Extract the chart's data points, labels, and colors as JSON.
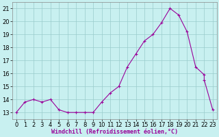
{
  "data_points": [
    [
      0,
      13.0
    ],
    [
      1,
      13.8
    ],
    [
      2,
      14.0
    ],
    [
      3,
      13.8
    ],
    [
      4,
      14.0
    ],
    [
      5,
      13.2
    ],
    [
      6,
      13.0
    ],
    [
      7,
      13.0
    ],
    [
      8,
      13.0
    ],
    [
      9,
      13.0
    ],
    [
      10,
      13.8
    ],
    [
      11,
      14.5
    ],
    [
      12,
      15.0
    ],
    [
      13,
      16.5
    ],
    [
      14,
      17.5
    ],
    [
      15,
      18.5
    ],
    [
      16,
      19.0
    ],
    [
      17,
      19.9
    ],
    [
      18,
      21.0
    ],
    [
      19,
      20.5
    ],
    [
      20,
      19.2
    ],
    [
      21,
      16.5
    ],
    [
      22,
      15.9
    ],
    [
      22,
      15.5
    ],
    [
      23,
      13.2
    ]
  ],
  "line_color": "#990099",
  "marker_color": "#990099",
  "bg_color": "#c8f0f0",
  "grid_color": "#99cccc",
  "xlabel": "Windchill (Refroidissement éolien,°C)",
  "ylim": [
    12.5,
    21.5
  ],
  "xlim": [
    -0.5,
    23.5
  ],
  "yticks": [
    13,
    14,
    15,
    16,
    17,
    18,
    19,
    20,
    21
  ],
  "xticks": [
    0,
    1,
    2,
    3,
    4,
    5,
    6,
    7,
    8,
    9,
    10,
    11,
    12,
    13,
    14,
    15,
    16,
    17,
    18,
    19,
    20,
    21,
    22,
    23
  ],
  "tick_fontsize": 6,
  "xlabel_fontsize": 6,
  "fig_width": 3.2,
  "fig_height": 2.0,
  "dpi": 100
}
